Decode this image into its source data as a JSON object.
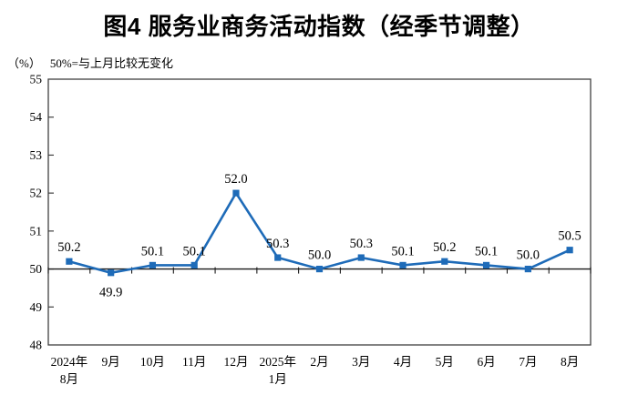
{
  "page": {
    "title": "图4 服务业商务活动指数（经季节调整）",
    "unit_label": "（%）",
    "axis_note": "50%=与上月比较无变化"
  },
  "chart_data": {
    "type": "line",
    "title": "图4 服务业商务活动指数（经季节调整）",
    "unit": "%",
    "note": "50%=与上月比较无变化",
    "categories": [
      "2024年\n8月",
      "9月",
      "10月",
      "11月",
      "12月",
      "2025年\n1月",
      "2月",
      "3月",
      "4月",
      "5月",
      "6月",
      "7月",
      "8月"
    ],
    "values": [
      50.2,
      49.9,
      50.1,
      50.1,
      52.0,
      50.3,
      50.0,
      50.3,
      50.1,
      50.2,
      50.1,
      50.0,
      50.5
    ],
    "data_labels": [
      "50.2",
      "49.9",
      "50.1",
      "50.1",
      "52.0",
      "50.3",
      "50.0",
      "50.3",
      "50.1",
      "50.2",
      "50.1",
      "50.0",
      "50.5"
    ],
    "ylim": [
      48,
      55
    ],
    "ytick_step": 1,
    "baseline": 50,
    "grid": false,
    "legend": null,
    "line_color": "#1e6bb8",
    "marker": "square",
    "axis_color": "#404040",
    "baseline_color": "#1a1a1a",
    "label_color": "#000000"
  }
}
